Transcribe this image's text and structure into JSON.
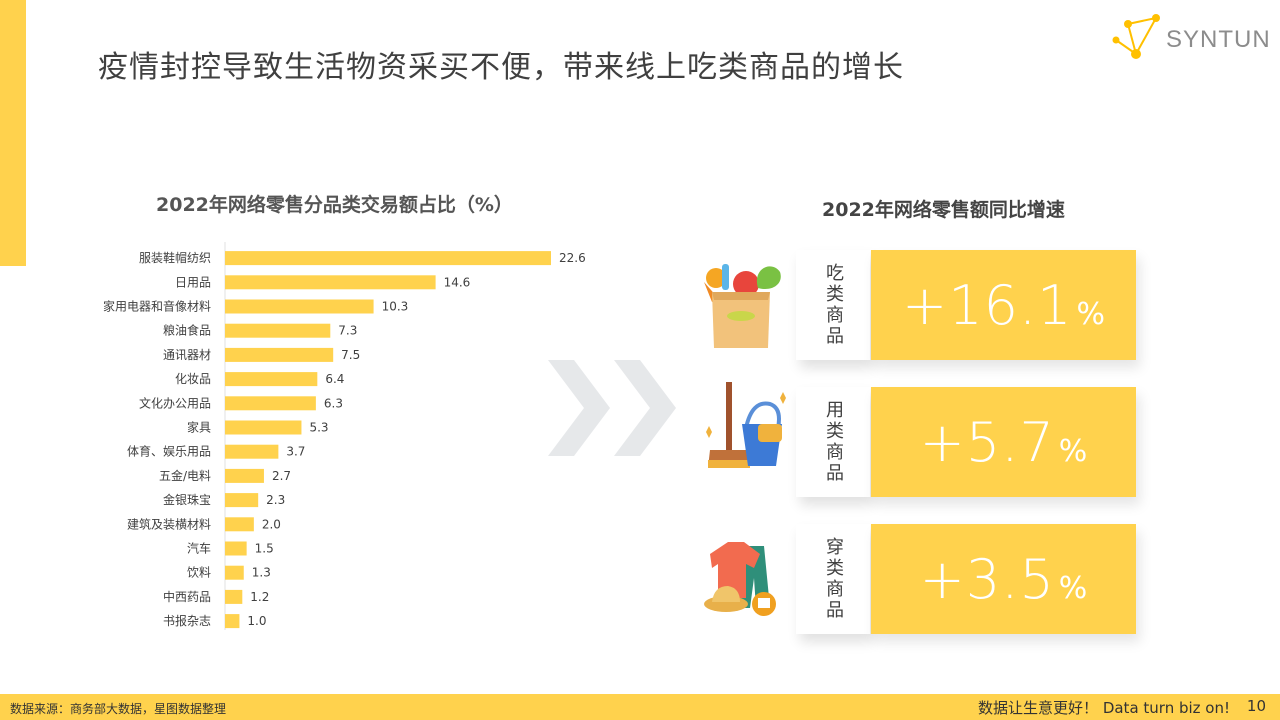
{
  "header": {
    "title": "疫情封控导致生活物资采买不便，带来线上吃类商品的增长",
    "logo_text": "SYNTUN"
  },
  "chart_data": {
    "type": "bar",
    "orientation": "horizontal",
    "title": "2022年网络零售分品类交易额占比（%）",
    "categories": [
      "服装鞋帽纺织",
      "日用品",
      "家用电器和音像材料",
      "粮油食品",
      "通讯器材",
      "化妆品",
      "文化办公用品",
      "家具",
      "体育、娱乐用品",
      "五金/电料",
      "金银珠宝",
      "建筑及装横材料",
      "汽车",
      "饮料",
      "中西药品",
      "书报杂志"
    ],
    "values": [
      22.6,
      14.6,
      10.3,
      7.3,
      7.5,
      6.4,
      6.3,
      5.3,
      3.7,
      2.7,
      2.3,
      2.0,
      1.5,
      1.3,
      1.2,
      1.0
    ],
    "value_labels": [
      "22.6",
      "14.6",
      "10.3",
      "7.3",
      "7.5",
      "6.4",
      "6.3",
      "5.3",
      "3.7",
      "2.7",
      "2.3",
      "2.0",
      "1.5",
      "1.3",
      "1.2",
      "1.0"
    ],
    "xlim": [
      0,
      25
    ],
    "color": "#ffd24d",
    "grid": false,
    "legend": "none"
  },
  "growth": {
    "title": "2022年网络零售额同比增速",
    "cards": [
      {
        "label": "吃类商品",
        "value": "+16.1",
        "unit": "%",
        "icon": "grocery-bag-icon"
      },
      {
        "label": "用类商品",
        "value": "+5.7",
        "unit": "%",
        "icon": "cleaning-supplies-icon"
      },
      {
        "label": "穿类商品",
        "value": "+3.5",
        "unit": "%",
        "icon": "clothing-icon"
      }
    ]
  },
  "footer": {
    "source": "数据来源：商务部大数据，星图数据整理",
    "slogan": "数据让生意更好！ Data  turn  biz  on!",
    "page": "10"
  },
  "colors": {
    "accent": "#ffd24d",
    "text": "#404040",
    "chevron": "#e6e8ea"
  }
}
